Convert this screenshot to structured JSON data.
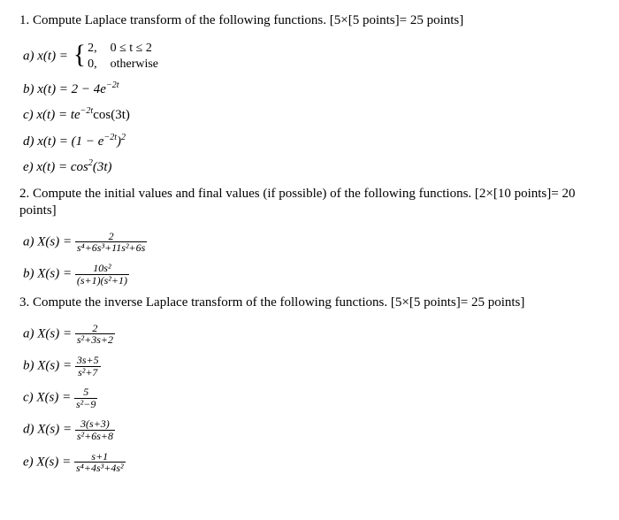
{
  "q1": {
    "header": "1. Compute Laplace transform of the following functions. [5×[5 points]= 25 points]",
    "a_prefix": "a) x(t) = ",
    "a_piece1_val": "2,",
    "a_piece1_cond": "0 ≤ t ≤ 2",
    "a_piece2_val": "0,",
    "a_piece2_cond": "otherwise",
    "b": "b) x(t) = 2 − 4e",
    "b_exp": "−2t",
    "c_pre": "c) x(t) = te",
    "c_exp": "−2t",
    "c_post": "cos(3t)",
    "d_pre": "d) x(t) = (1 − e",
    "d_exp": "−2t",
    "d_post": ")",
    "d_sq": "2",
    "e_pre": "e) x(t) = cos",
    "e_sq": "2",
    "e_post": "(3t)"
  },
  "q2": {
    "header": "2. Compute the initial values and final values (if possible) of the following functions. [2×[10 points]= 20 points]",
    "a_pre": "a) X(s) = ",
    "a_num": "2",
    "a_den": "s⁴+6s³+11s²+6s",
    "b_pre": "b) X(s) = ",
    "b_num": "10s²",
    "b_den": "(s+1)(s²+1)"
  },
  "q3": {
    "header": "3. Compute the inverse Laplace transform of the following functions. [5×[5 points]= 25 points]",
    "a_pre": "a) X(s) = ",
    "a_num": "2",
    "a_den": "s²+3s+2",
    "b_pre": "b) X(s) = ",
    "b_num": "3s+5",
    "b_den": "s²+7",
    "c_pre": "c) X(s) = ",
    "c_num": "5",
    "c_den": "s²−9",
    "d_pre": "d) X(s) = ",
    "d_num": "3(s+3)",
    "d_den": "s²+6s+8",
    "e_pre": "e) X(s) = ",
    "e_num": "s+1",
    "e_den": "s⁴+4s³+4s²"
  }
}
